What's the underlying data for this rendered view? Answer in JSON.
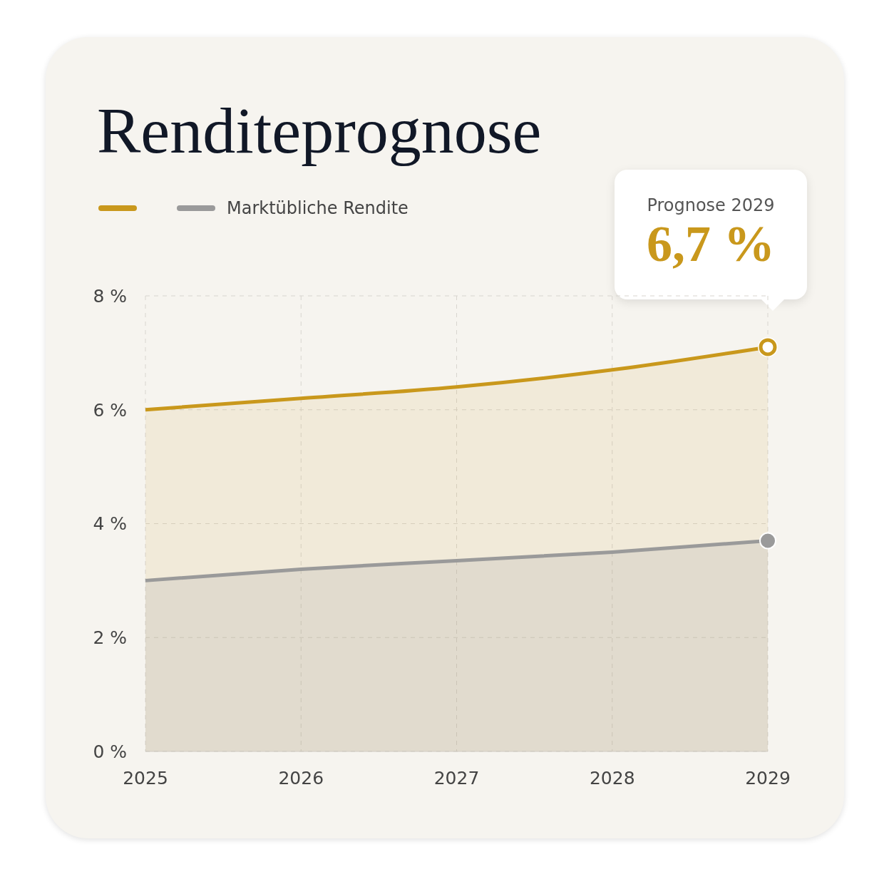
{
  "chart_data": {
    "type": "area",
    "title": "Renditeprognose",
    "categories": [
      "2025",
      "2026",
      "2027",
      "2028",
      "2029"
    ],
    "series": [
      {
        "color": "#c9981c",
        "values": [
          6.0,
          6.2,
          6.4,
          6.7,
          7.1
        ]
      },
      {
        "name": "Marktübliche Rendite",
        "color": "#9a9a9a",
        "values": [
          3.0,
          3.2,
          3.35,
          3.5,
          3.7
        ]
      }
    ],
    "ylim": [
      0,
      8
    ],
    "yticks": [
      {
        "value": 0,
        "label": "0 %"
      },
      {
        "value": 2,
        "label": "2 %"
      },
      {
        "value": 4,
        "label": "4 %"
      },
      {
        "value": 6,
        "label": "6 %"
      },
      {
        "value": 8,
        "label": "8 %"
      }
    ],
    "grid": true,
    "legend": "top left",
    "line_style": "solid",
    "annotations": [
      "Prognose 2029",
      "6,7 %"
    ]
  }
}
